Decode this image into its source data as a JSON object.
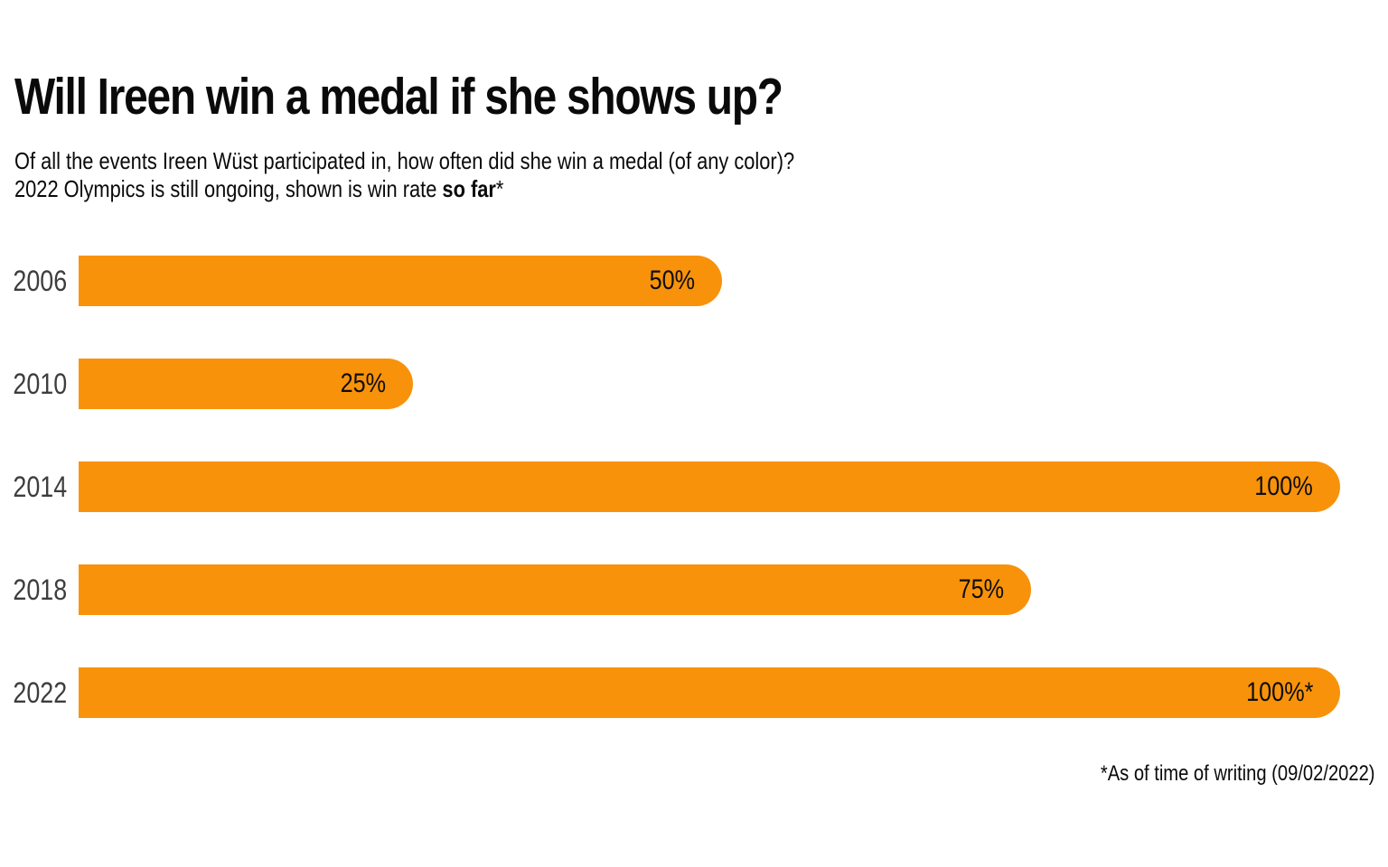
{
  "title": "Will Ireen win a medal if she shows up?",
  "subtitle": {
    "line1": "Of all the events Ireen Wüst participated in, how often did she win a medal (of any color)?",
    "line2_prefix": "2022 Olympics is still ongoing, shown is win rate ",
    "line2_bold": "so far",
    "line2_suffix": "*"
  },
  "footnote": "*As of time of writing (09/02/2022)",
  "colors": {
    "bar": "#F8920A",
    "year_label": "#3D3D3D",
    "value_label": "#0E0E0E",
    "text": "#0A0A0A",
    "background": "#FFFFFF"
  },
  "chart_data": {
    "type": "bar",
    "orientation": "horizontal",
    "title": "Will Ireen win a medal if she shows up?",
    "xlabel": "",
    "ylabel": "",
    "xlim": [
      0,
      100
    ],
    "grid": false,
    "legend": false,
    "categories": [
      "2006",
      "2010",
      "2014",
      "2018",
      "2022"
    ],
    "values": [
      50,
      25,
      100,
      75,
      100
    ],
    "value_labels": [
      "50%",
      "25%",
      "100%",
      "75%",
      "100%*"
    ],
    "annotations": [
      "*As of time of writing (09/02/2022)"
    ]
  }
}
